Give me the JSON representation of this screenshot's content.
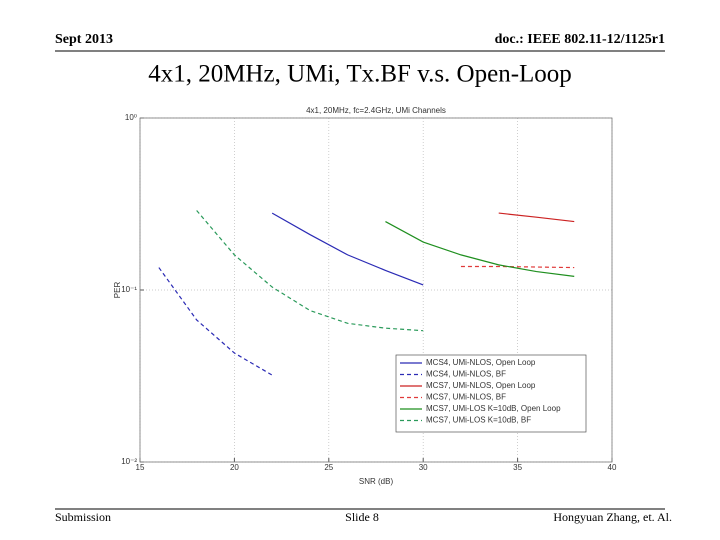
{
  "header": {
    "date": "Sept 2013",
    "doc": "doc.: IEEE 802.11-12/1125r1"
  },
  "slide_title": "4x1, 20MHz, UMi, Tx.BF v.s. Open-Loop",
  "footer": {
    "left": "Submission",
    "center": "Slide 8",
    "right": "Hongyuan Zhang, et. Al."
  },
  "chart_data": {
    "type": "line",
    "title": "4x1, 20MHz, fc=2.4GHz, UMi Channels",
    "xlabel": "SNR (dB)",
    "ylabel": "PER",
    "xlim": [
      15,
      40
    ],
    "xticks": [
      15,
      20,
      25,
      30,
      35,
      40
    ],
    "ylim": [
      0.01,
      1
    ],
    "yscale": "log",
    "yticks": [
      {
        "value": 0.01,
        "label": "10⁻²"
      },
      {
        "value": 0.1,
        "label": "10⁻¹"
      },
      {
        "value": 1,
        "label": "10⁰"
      }
    ],
    "grid": true,
    "legend": "lower right",
    "series": [
      {
        "name": "MCS4, UMi-NLOS, Open Loop",
        "color": "#2b2bb5",
        "linestyle": "solid",
        "x": [
          22,
          24,
          26,
          28,
          30
        ],
        "values": [
          0.28,
          0.21,
          0.16,
          0.13,
          0.107
        ]
      },
      {
        "name": "MCS4, UMi-NLOS, BF",
        "color": "#2b2bb5",
        "linestyle": "dashed",
        "x": [
          16,
          18,
          20,
          22
        ],
        "values": [
          0.135,
          0.067,
          0.043,
          0.032
        ]
      },
      {
        "name": "MCS7, UMi-NLOS, Open Loop",
        "color": "#cc2222",
        "linestyle": "solid",
        "x": [
          34,
          36,
          38
        ],
        "values": [
          0.28,
          0.265,
          0.25
        ]
      },
      {
        "name": "MCS7, UMi-NLOS, BF",
        "color": "#e03a3a",
        "linestyle": "dashed",
        "x": [
          32,
          34,
          36,
          38
        ],
        "values": [
          0.137,
          0.137,
          0.136,
          0.135
        ]
      },
      {
        "name": "MCS7, UMi-LOS K=10dB, Open Loop",
        "color": "#1f8f1f",
        "linestyle": "solid",
        "x": [
          28,
          30,
          32,
          34,
          36,
          38
        ],
        "values": [
          0.25,
          0.19,
          0.16,
          0.14,
          0.128,
          0.12
        ]
      },
      {
        "name": "MCS7, UMi-LOS K=10dB, BF",
        "color": "#2a9a5a",
        "linestyle": "dashed",
        "x": [
          18,
          20,
          22,
          24,
          26,
          28,
          30
        ],
        "values": [
          0.29,
          0.16,
          0.104,
          0.076,
          0.064,
          0.06,
          0.058
        ]
      }
    ]
  }
}
